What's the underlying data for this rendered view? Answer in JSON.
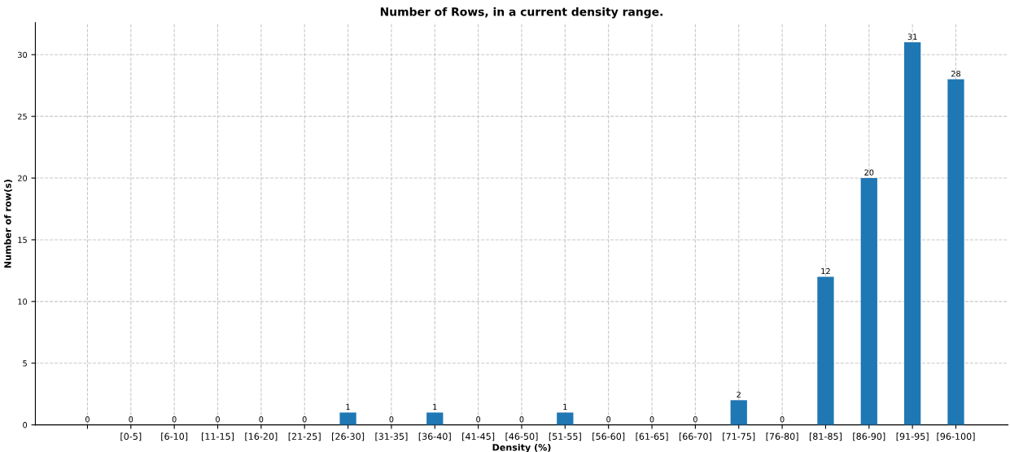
{
  "chart_data": {
    "type": "bar",
    "title": "Number of Rows, in a current density range.",
    "xlabel": "Density (%)",
    "ylabel": "Number of row(s)",
    "categories": [
      null,
      "[0-5]",
      "[6-10]",
      "[11-15]",
      "[16-20]",
      "[21-25]",
      "[26-30]",
      "[31-35]",
      "[36-40]",
      "[41-45]",
      "[46-50]",
      "[51-55]",
      "[56-60]",
      "[61-65]",
      "[66-70]",
      "[71-75]",
      "[76-80]",
      "[81-85]",
      "[86-90]",
      "[91-95]",
      "[96-100]"
    ],
    "values": [
      0,
      0,
      0,
      0,
      0,
      0,
      1,
      0,
      1,
      0,
      0,
      1,
      0,
      0,
      0,
      2,
      0,
      12,
      20,
      31,
      28
    ],
    "color": "#1f77b4",
    "ylim": [
      0,
      32.6
    ],
    "yticks": [
      0,
      5,
      10,
      15,
      20,
      25,
      30
    ],
    "grid": true,
    "data_labels": true
  }
}
